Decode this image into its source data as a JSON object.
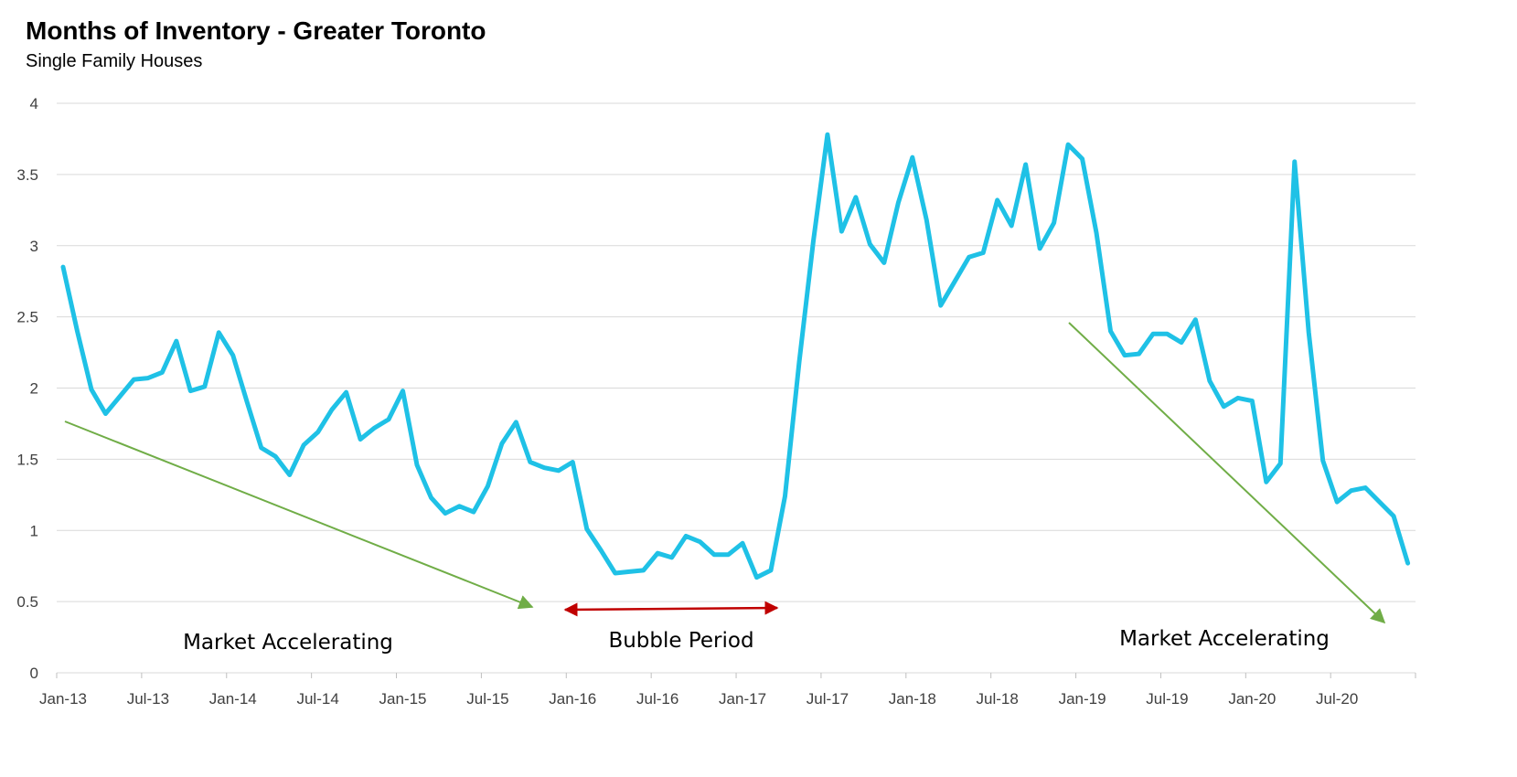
{
  "chart_data": {
    "type": "line",
    "title": "Months of Inventory - Greater Toronto",
    "subtitle": "Single Family Houses",
    "ylim": [
      0,
      4
    ],
    "yticks": [
      "0",
      "0.5",
      "1",
      "1.5",
      "2",
      "2.5",
      "3",
      "3.5",
      "4"
    ],
    "xticks": [
      "Jan-13",
      "Jul-13",
      "Jan-14",
      "Jul-14",
      "Jan-15",
      "Jul-15",
      "Jan-16",
      "Jul-16",
      "Jan-17",
      "Jul-17",
      "Jan-18",
      "Jul-18",
      "Jan-19",
      "Jul-19",
      "Jan-20",
      "Jul-20"
    ],
    "grid": true,
    "series": [
      {
        "color": "#1fc1e6",
        "start": "Jan-13",
        "values": [
          2.85,
          2.4,
          1.99,
          1.82,
          1.94,
          2.06,
          2.07,
          2.11,
          2.33,
          1.98,
          2.01,
          2.39,
          2.23,
          1.9,
          1.58,
          1.52,
          1.39,
          1.6,
          1.69,
          1.85,
          1.97,
          1.64,
          1.72,
          1.78,
          1.98,
          1.46,
          1.23,
          1.12,
          1.17,
          1.13,
          1.31,
          1.61,
          1.76,
          1.48,
          1.44,
          1.42,
          1.48,
          1.01,
          0.86,
          0.7,
          0.71,
          0.72,
          0.84,
          0.81,
          0.96,
          0.92,
          0.83,
          0.83,
          0.91,
          0.67,
          0.72,
          1.24,
          2.18,
          3.03,
          3.78,
          3.1,
          3.34,
          3.01,
          2.88,
          3.3,
          3.62,
          3.18,
          2.58,
          2.75,
          2.92,
          2.95,
          3.32,
          3.14,
          3.57,
          2.98,
          3.16,
          3.71,
          3.61,
          3.09,
          2.4,
          2.23,
          2.24,
          2.38,
          2.38,
          2.32,
          2.48,
          2.05,
          1.87,
          1.93,
          1.91,
          1.34,
          1.47,
          3.59,
          2.39,
          1.49,
          1.2,
          1.28,
          1.3,
          1.2,
          1.1,
          0.77
        ]
      }
    ],
    "annotations": [
      {
        "text": "Market Accelerating",
        "arrow_color": "#70ad47"
      },
      {
        "text": "Bubble Period",
        "arrow_color": "#c00000"
      },
      {
        "text": "Market Accelerating",
        "arrow_color": "#70ad47"
      }
    ]
  }
}
